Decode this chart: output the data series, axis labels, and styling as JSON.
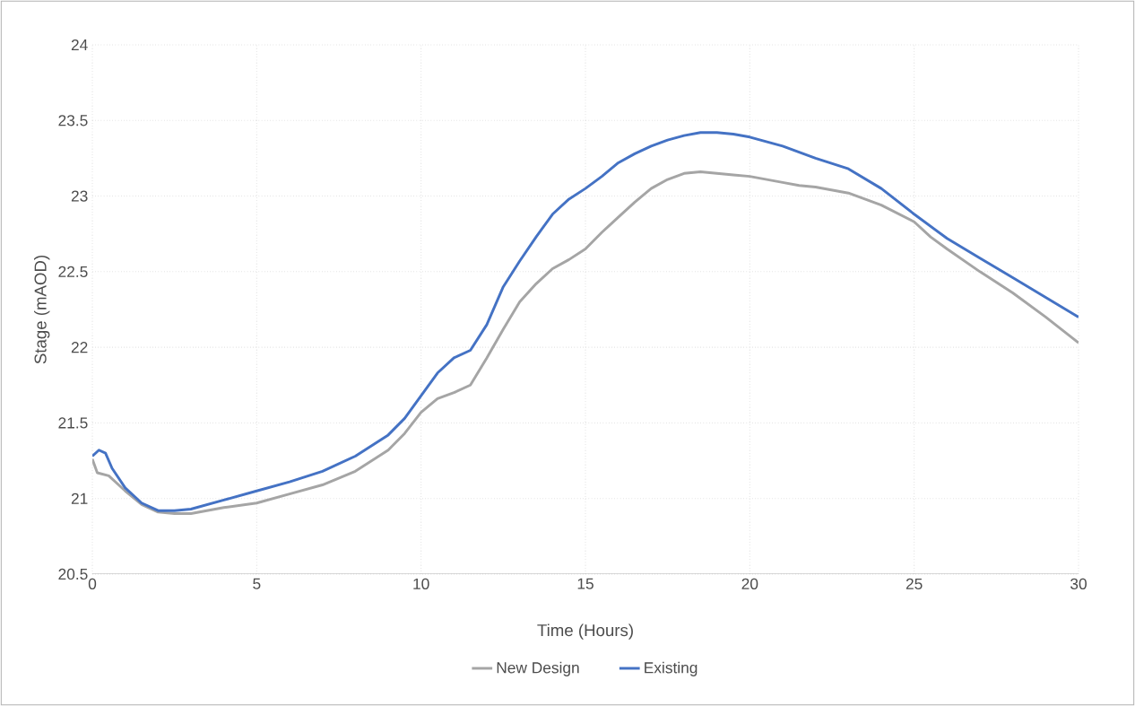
{
  "chart_data": {
    "type": "line",
    "xlabel": "Time (Hours)",
    "ylabel": "Stage (mAOD)",
    "xlim": [
      0,
      30
    ],
    "ylim": [
      20.5,
      24
    ],
    "xticks": [
      0,
      5,
      10,
      15,
      20,
      25,
      30
    ],
    "yticks": [
      20.5,
      21,
      21.5,
      22,
      22.5,
      23,
      23.5,
      24
    ],
    "grid": true,
    "legend": "bottom",
    "series": [
      {
        "name": "New Design",
        "color": "#a5a5a5",
        "x": [
          0,
          0.15,
          0.5,
          1,
          1.5,
          2,
          2.5,
          3,
          4,
          5,
          6,
          7,
          8,
          9,
          9.5,
          10,
          10.5,
          11,
          11.5,
          12,
          12.5,
          13,
          13.5,
          14,
          14.5,
          15,
          15.5,
          16,
          16.5,
          17,
          17.5,
          18,
          18.5,
          19,
          19.5,
          20,
          20.5,
          21,
          21.5,
          22,
          23,
          24,
          25,
          25.5,
          26,
          27,
          28,
          29,
          30
        ],
        "values": [
          21.26,
          21.17,
          21.15,
          21.05,
          20.96,
          20.91,
          20.9,
          20.9,
          20.94,
          20.97,
          21.03,
          21.09,
          21.18,
          21.32,
          21.43,
          21.57,
          21.66,
          21.7,
          21.75,
          21.93,
          22.12,
          22.3,
          22.42,
          22.52,
          22.58,
          22.65,
          22.76,
          22.86,
          22.96,
          23.05,
          23.11,
          23.15,
          23.16,
          23.15,
          23.14,
          23.13,
          23.11,
          23.09,
          23.07,
          23.06,
          23.02,
          22.94,
          22.83,
          22.73,
          22.65,
          22.5,
          22.36,
          22.2,
          22.03
        ]
      },
      {
        "name": "Existing",
        "color": "#4472c4",
        "x": [
          0,
          0.2,
          0.4,
          0.6,
          1,
          1.5,
          2,
          2.5,
          3,
          4,
          5,
          6,
          7,
          8,
          9,
          9.5,
          10,
          10.5,
          11,
          11.5,
          12,
          12.5,
          13,
          13.5,
          14,
          14.5,
          15,
          15.5,
          16,
          16.5,
          17,
          17.5,
          18,
          18.5,
          19,
          19.5,
          20,
          21,
          22,
          23,
          24,
          25,
          26,
          27,
          28,
          29,
          30
        ],
        "values": [
          21.28,
          21.32,
          21.3,
          21.2,
          21.07,
          20.97,
          20.92,
          20.92,
          20.93,
          20.99,
          21.05,
          21.11,
          21.18,
          21.28,
          21.42,
          21.53,
          21.68,
          21.83,
          21.93,
          21.98,
          22.15,
          22.4,
          22.57,
          22.73,
          22.88,
          22.98,
          23.05,
          23.13,
          23.22,
          23.28,
          23.33,
          23.37,
          23.4,
          23.42,
          23.42,
          23.41,
          23.39,
          23.33,
          23.25,
          23.18,
          23.05,
          22.88,
          22.72,
          22.59,
          22.46,
          22.33,
          22.2
        ]
      }
    ]
  }
}
